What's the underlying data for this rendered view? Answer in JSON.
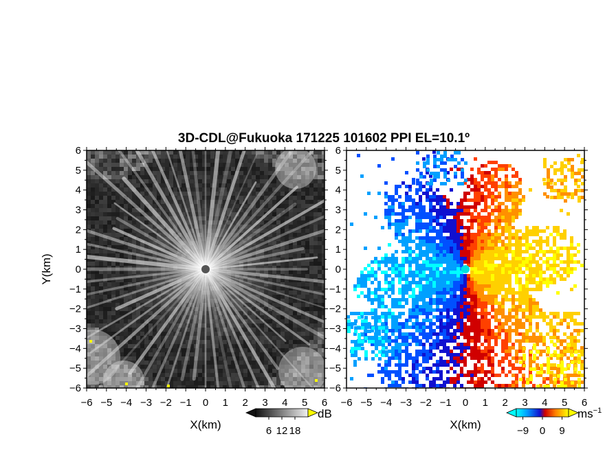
{
  "title": "3D-CDL@Fukuoka 171225 101602 PPI EL=10.1º",
  "chart_data": [
    {
      "type": "heatmap",
      "panel": "left",
      "quantity": "backscatter intensity",
      "xlabel": "X(km)",
      "ylabel": "Y(km)",
      "xlim": [
        -6,
        6
      ],
      "ylim": [
        -6,
        6
      ],
      "xticks": [
        "−6",
        "−5",
        "−4",
        "−3",
        "−2",
        "−1",
        "0",
        "1",
        "2",
        "3",
        "4",
        "5",
        "6"
      ],
      "yticks": [
        "6",
        "5",
        "4",
        "3",
        "2",
        "1",
        "0",
        "−1",
        "−2",
        "−3",
        "−4",
        "−5",
        "−6"
      ],
      "colormap": "grayscale",
      "colorbar": {
        "unit": "dB",
        "ticks": [
          "6",
          "12",
          "18"
        ],
        "range": [
          0,
          24
        ]
      }
    },
    {
      "type": "heatmap",
      "panel": "right",
      "quantity": "radial velocity",
      "xlabel": "X(km)",
      "ylabel": "",
      "xlim": [
        -6,
        6
      ],
      "ylim": [
        -6,
        6
      ],
      "xticks": [
        "−6",
        "−5",
        "−4",
        "−3",
        "−2",
        "−1",
        "0",
        "1",
        "2",
        "3",
        "4",
        "5",
        "6"
      ],
      "yticks": [
        "6",
        "5",
        "4",
        "3",
        "2",
        "1",
        "0",
        "−1",
        "−2",
        "−3",
        "−4",
        "−5",
        "−6"
      ],
      "colormap": "diverging",
      "colorbar": {
        "unit": "ms",
        "unit_exponent": "−1",
        "ticks": [
          "−9",
          "0",
          "9"
        ],
        "range": [
          -12,
          12
        ]
      }
    }
  ],
  "colors": {
    "velocity_scale": [
      "#00ffff",
      "#00a0ff",
      "#0050ff",
      "#1010d0",
      "#d00000",
      "#ff4000",
      "#ff9000",
      "#ffd000",
      "#ffff00"
    ],
    "gray_dark": "#202020",
    "gray_light": "#e8e8e8",
    "center_marker_left": "#555555",
    "center_marker_right": "#00e0e0"
  }
}
